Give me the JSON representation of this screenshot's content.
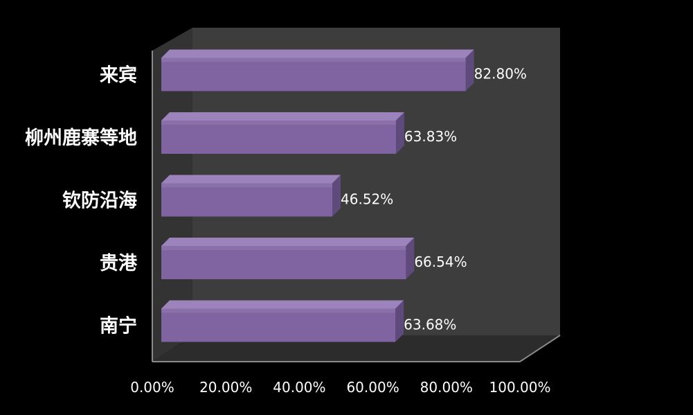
{
  "chart_data": {
    "type": "bar",
    "orientation": "horizontal",
    "style": "3d",
    "categories": [
      "来宾",
      "柳州鹿寨等地",
      "钦防沿海",
      "贵港",
      "南宁"
    ],
    "values": [
      82.8,
      63.83,
      46.52,
      66.54,
      63.68
    ],
    "value_labels": [
      "82.80%",
      "63.83%",
      "46.52%",
      "66.54%",
      "63.68%"
    ],
    "x_ticks": [
      "0.00%",
      "20.00%",
      "40.00%",
      "60.00%",
      "80.00%",
      "100.00%"
    ],
    "xlim": [
      0,
      100
    ],
    "title": "",
    "xlabel": "",
    "ylabel": "",
    "grid": false,
    "legend": "none",
    "colors": {
      "background": "#000000",
      "wall": "#3d3d3d",
      "floor": "#2c2c2c",
      "axis": "#8a8a8a",
      "bar_front": "#8064a2",
      "bar_top": "#9c83bb",
      "bar_side": "#5f4a7c",
      "text": "#ffffff"
    }
  }
}
